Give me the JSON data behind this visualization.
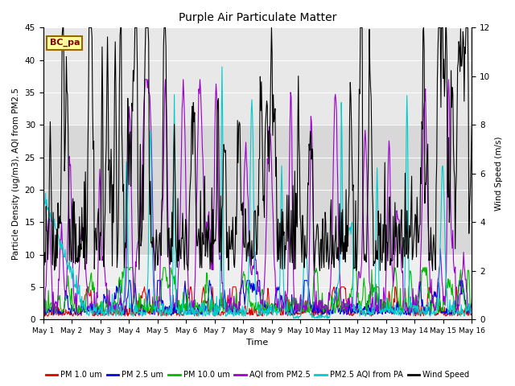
{
  "title": "Purple Air Particulate Matter",
  "xlabel": "Time",
  "ylabel_left": "Particle Density (ug/m3), AQI from PM2.5",
  "ylabel_right": "Wind Speed (m/s)",
  "annotation_text": "BC_pa",
  "annotation_bg": "#FFFF99",
  "annotation_border": "#996600",
  "ylim_left": [
    0,
    45
  ],
  "ylim_right": [
    0,
    12
  ],
  "xtick_labels": [
    "May 1",
    "May 2",
    "May 3",
    "May 4",
    "May 5",
    "May 6",
    "May 7",
    "May 8",
    "May 9",
    "May 10",
    "May 11",
    "May 12",
    "May 13",
    "May 14",
    "May 15",
    "May 16"
  ],
  "bg_color_top": "#e8e8e8",
  "bg_color_mid": "#d8d8d8",
  "bg_color_bot": "#efefef",
  "colors": {
    "pm1": "#dd0000",
    "pm25": "#0000dd",
    "pm10": "#00bb00",
    "aqi_pm25": "#9900cc",
    "pm25_aqi_pa": "#00cccc",
    "wind": "#000000"
  },
  "legend_labels": [
    "PM 1.0 um",
    "PM 2.5 um",
    "PM 10.0 um",
    "AQI from PM2.5",
    "PM2.5 AQI from PA",
    "Wind Speed"
  ],
  "n_points": 720
}
